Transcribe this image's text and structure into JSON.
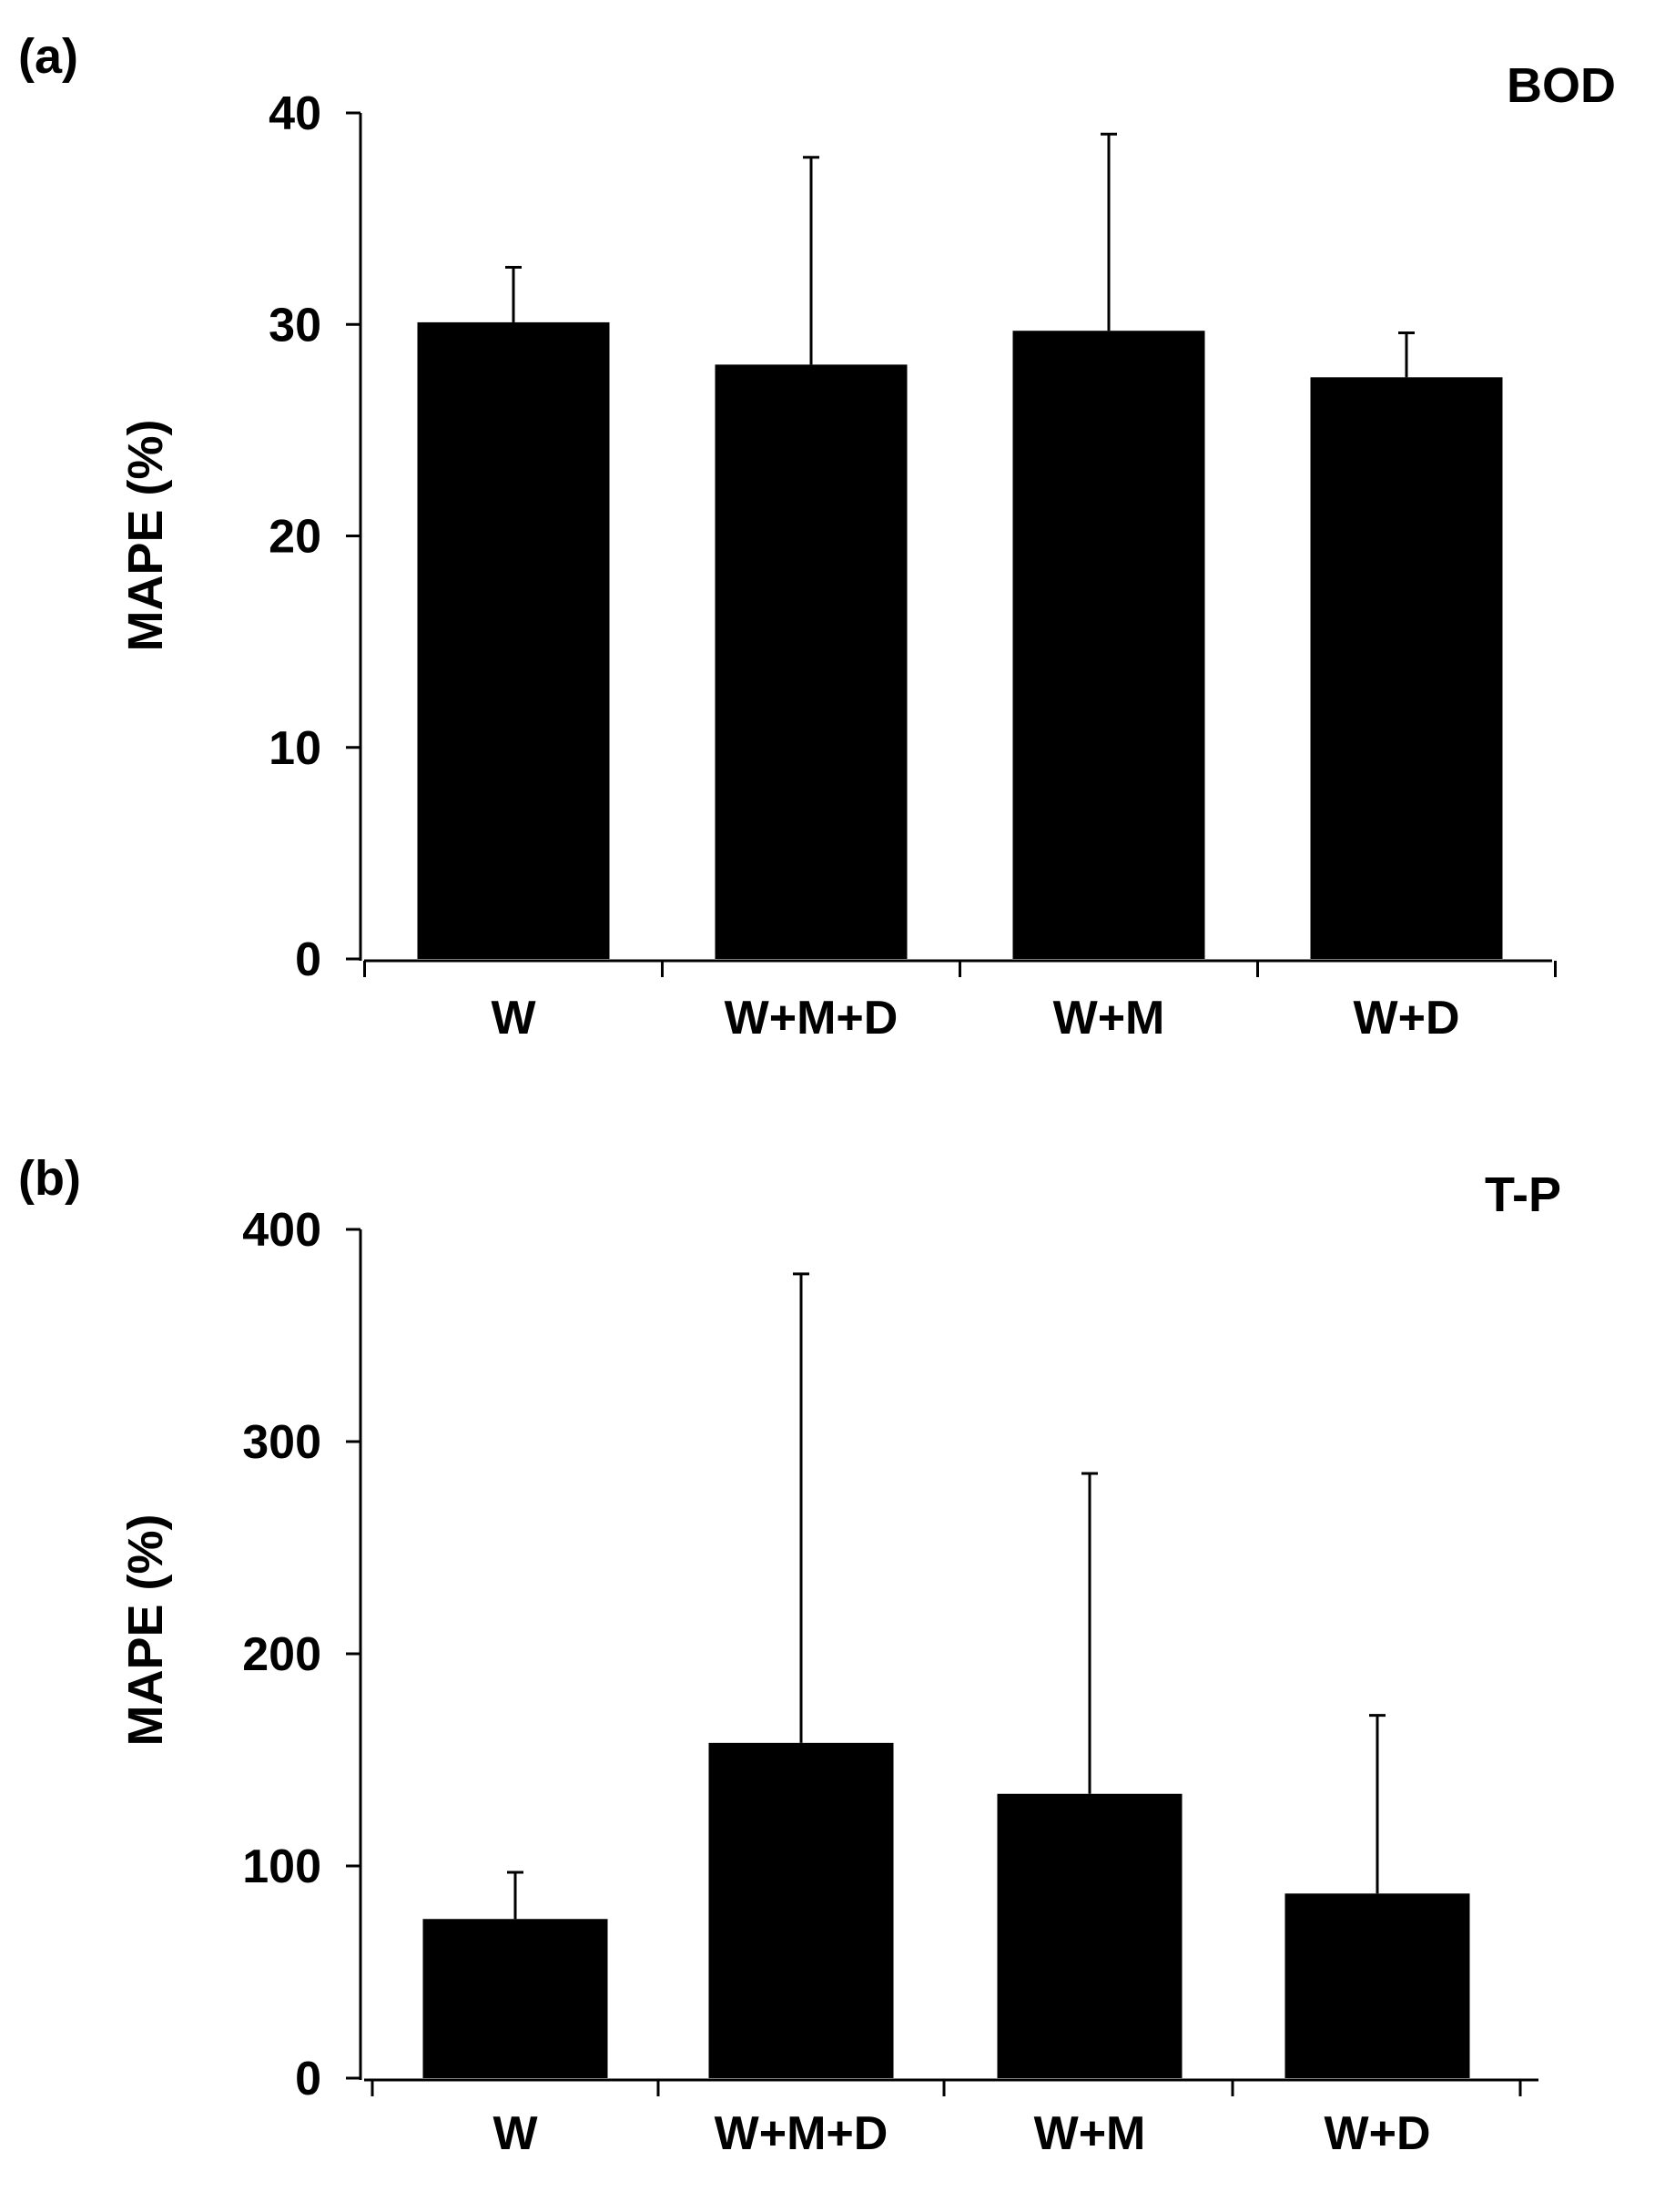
{
  "colors": {
    "bar": "#000000",
    "axis": "#000000",
    "background": "#ffffff"
  },
  "chart_data": [
    {
      "type": "bar",
      "panel_label": "(a)",
      "title": "BOD",
      "xlabel": "",
      "ylabel": "MAPE (%)",
      "categories": [
        "W",
        "W+M+D",
        "W+M",
        "W+D"
      ],
      "values": [
        30.1,
        28.1,
        29.7,
        27.5
      ],
      "error_upper": [
        32.7,
        37.9,
        39.0,
        29.6
      ],
      "ylim": [
        0,
        40
      ],
      "yticks": [
        0,
        10,
        20,
        30,
        40
      ],
      "ytick_labels": [
        "0",
        "10",
        "20",
        "30",
        "40"
      ],
      "grid": false,
      "legend": "none"
    },
    {
      "type": "bar",
      "panel_label": "(b)",
      "title": "T-P",
      "xlabel": "",
      "ylabel": "MAPE (%)",
      "categories": [
        "W",
        "W+M+D",
        "W+M",
        "W+D"
      ],
      "values": [
        75,
        158,
        134,
        87
      ],
      "error_upper": [
        97,
        379,
        285,
        171
      ],
      "ylim": [
        0,
        400
      ],
      "yticks": [
        0,
        100,
        200,
        300,
        400
      ],
      "ytick_labels": [
        "0",
        "100",
        "200",
        "300",
        "400"
      ],
      "grid": false,
      "legend": "none"
    }
  ]
}
